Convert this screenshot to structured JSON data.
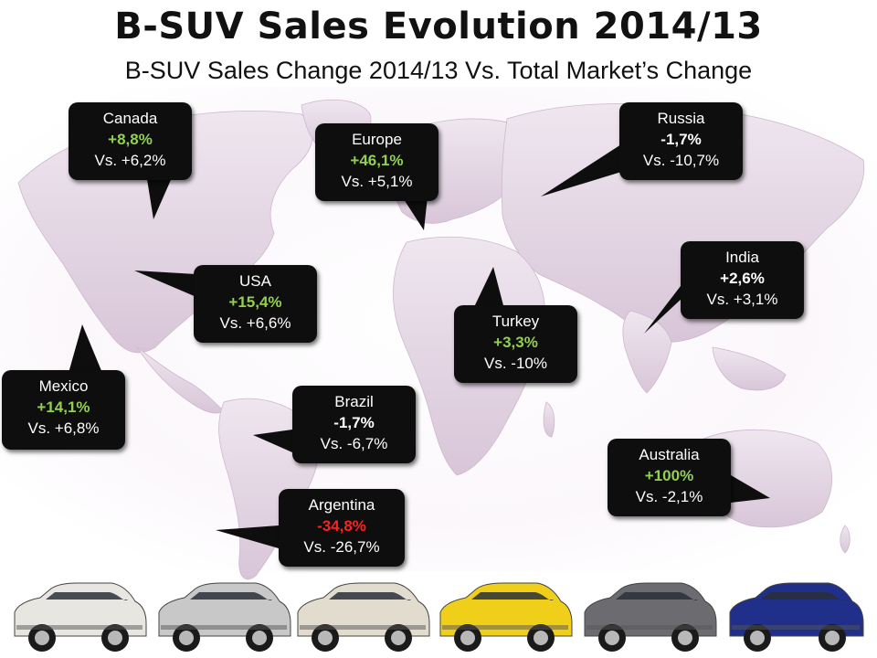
{
  "title": "B-SUV Sales Evolution 2014/13",
  "subtitle": "B-SUV Sales Change 2014/13 Vs. Total Market’s Change",
  "colors": {
    "positive": "#92d050",
    "neutral": "#ffffff",
    "negative": "#ff2020",
    "bubble_bg": "#0e0e0e",
    "map_fill": "#e4d6e4"
  },
  "regions": [
    {
      "id": "canada",
      "name": "Canada",
      "change": "+8,8%",
      "market": "Vs. +6,2%",
      "tone": "pos"
    },
    {
      "id": "europe",
      "name": "Europe",
      "change": "+46,1%",
      "market": "Vs. +5,1%",
      "tone": "pos"
    },
    {
      "id": "russia",
      "name": "Russia",
      "change": "-1,7%",
      "market": "Vs. -10,7%",
      "tone": "neutral"
    },
    {
      "id": "usa",
      "name": "USA",
      "change": "+15,4%",
      "market": "Vs. +6,6%",
      "tone": "pos"
    },
    {
      "id": "india",
      "name": "India",
      "change": "+2,6%",
      "market": "Vs. +3,1%",
      "tone": "neutral"
    },
    {
      "id": "turkey",
      "name": "Turkey",
      "change": "+3,3%",
      "market": "Vs. -10%",
      "tone": "pos"
    },
    {
      "id": "mexico",
      "name": "Mexico",
      "change": "+14,1%",
      "market": "Vs. +6,8%",
      "tone": "pos"
    },
    {
      "id": "brazil",
      "name": "Brazil",
      "change": "-1,7%",
      "market": "Vs. -6,7%",
      "tone": "neutral"
    },
    {
      "id": "australia",
      "name": "Australia",
      "change": "+100%",
      "market": "Vs. -2,1%",
      "tone": "pos"
    },
    {
      "id": "argentina",
      "name": "Argentina",
      "change": "-34,8%",
      "market": "Vs. -26,7%",
      "tone": "neg"
    }
  ],
  "cars": [
    {
      "color": "#e8e6e0"
    },
    {
      "color": "#c8c8c8"
    },
    {
      "color": "#e2dccf"
    },
    {
      "color": "#f0cf1a"
    },
    {
      "color": "#6c6c70"
    },
    {
      "color": "#1f2f8a"
    }
  ]
}
